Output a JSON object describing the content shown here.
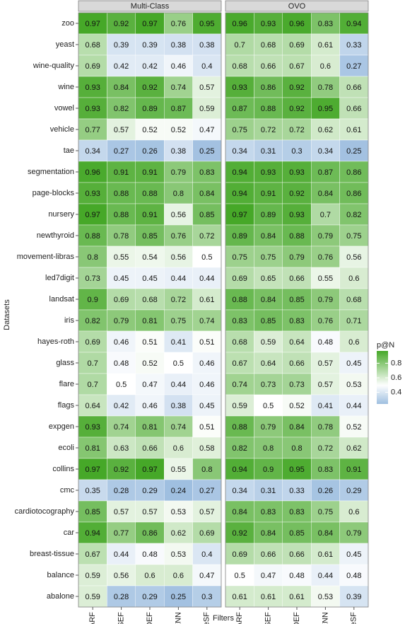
{
  "chart_data": {
    "type": "heatmap",
    "x_label": "Filters",
    "y_label": "Datasets",
    "legend_title": "p@N",
    "categories": [
      "HARF",
      "SEF",
      "DEF",
      "AENN",
      "PruneSF"
    ],
    "rows": [
      "zoo",
      "yeast",
      "wine-quality",
      "wine",
      "vowel",
      "vehicle",
      "tae",
      "segmentation",
      "page-blocks",
      "nursery",
      "newthyroid",
      "movement-libras",
      "led7digit",
      "landsat",
      "iris",
      "hayes-roth",
      "glass",
      "flare",
      "flags",
      "expgen",
      "ecoli",
      "collins",
      "cmc",
      "cardiotocography",
      "car",
      "breast-tissue",
      "balance",
      "abalone"
    ],
    "colors": {
      "low": "#9fbfe0",
      "mid": "#ffffff",
      "high": "#46a828"
    },
    "clim": [
      0.24,
      0.97
    ],
    "cmid": 0.5,
    "cticks": [
      0.4,
      0.6,
      0.8
    ],
    "facets": [
      {
        "title": "Multi-Class",
        "values": [
          [
            0.97,
            0.92,
            0.97,
            0.76,
            0.95
          ],
          [
            0.68,
            0.39,
            0.39,
            0.38,
            0.38
          ],
          [
            0.69,
            0.42,
            0.42,
            0.46,
            0.4
          ],
          [
            0.93,
            0.84,
            0.92,
            0.74,
            0.57
          ],
          [
            0.93,
            0.82,
            0.89,
            0.87,
            0.59
          ],
          [
            0.77,
            0.57,
            0.52,
            0.52,
            0.47
          ],
          [
            0.34,
            0.27,
            0.26,
            0.38,
            0.25
          ],
          [
            0.96,
            0.91,
            0.91,
            0.79,
            0.83
          ],
          [
            0.93,
            0.88,
            0.88,
            0.8,
            0.84
          ],
          [
            0.97,
            0.88,
            0.91,
            0.56,
            0.85
          ],
          [
            0.88,
            0.78,
            0.85,
            0.76,
            0.72
          ],
          [
            0.8,
            0.55,
            0.54,
            0.56,
            0.5
          ],
          [
            0.73,
            0.45,
            0.45,
            0.44,
            0.44
          ],
          [
            0.9,
            0.69,
            0.68,
            0.72,
            0.61
          ],
          [
            0.82,
            0.79,
            0.81,
            0.75,
            0.74
          ],
          [
            0.69,
            0.46,
            0.51,
            0.41,
            0.51
          ],
          [
            0.7,
            0.48,
            0.52,
            0.5,
            0.46
          ],
          [
            0.7,
            0.5,
            0.47,
            0.44,
            0.46
          ],
          [
            0.64,
            0.42,
            0.46,
            0.38,
            0.45
          ],
          [
            0.93,
            0.74,
            0.81,
            0.74,
            0.51
          ],
          [
            0.81,
            0.63,
            0.66,
            0.6,
            0.58
          ],
          [
            0.97,
            0.92,
            0.97,
            0.55,
            0.8
          ],
          [
            0.35,
            0.28,
            0.29,
            0.24,
            0.27
          ],
          [
            0.85,
            0.57,
            0.57,
            0.53,
            0.57
          ],
          [
            0.94,
            0.77,
            0.86,
            0.62,
            0.69
          ],
          [
            0.67,
            0.44,
            0.48,
            0.53,
            0.4
          ],
          [
            0.59,
            0.56,
            0.6,
            0.6,
            0.47
          ],
          [
            0.59,
            0.28,
            0.29,
            0.25,
            0.3
          ]
        ]
      },
      {
        "title": "OVO",
        "values": [
          [
            0.96,
            0.93,
            0.96,
            0.83,
            0.94
          ],
          [
            0.7,
            0.68,
            0.69,
            0.61,
            0.33
          ],
          [
            0.68,
            0.66,
            0.67,
            0.6,
            0.27
          ],
          [
            0.93,
            0.86,
            0.92,
            0.78,
            0.66
          ],
          [
            0.87,
            0.88,
            0.92,
            0.95,
            0.66
          ],
          [
            0.75,
            0.72,
            0.72,
            0.62,
            0.61
          ],
          [
            0.34,
            0.31,
            0.3,
            0.34,
            0.25
          ],
          [
            0.94,
            0.93,
            0.93,
            0.87,
            0.86
          ],
          [
            0.94,
            0.91,
            0.92,
            0.84,
            0.86
          ],
          [
            0.97,
            0.89,
            0.93,
            0.7,
            0.82
          ],
          [
            0.89,
            0.84,
            0.88,
            0.79,
            0.75
          ],
          [
            0.75,
            0.75,
            0.79,
            0.76,
            0.56
          ],
          [
            0.69,
            0.65,
            0.66,
            0.55,
            0.6
          ],
          [
            0.88,
            0.84,
            0.85,
            0.79,
            0.68
          ],
          [
            0.83,
            0.85,
            0.83,
            0.76,
            0.71
          ],
          [
            0.68,
            0.59,
            0.64,
            0.48,
            0.6
          ],
          [
            0.67,
            0.64,
            0.66,
            0.57,
            0.45
          ],
          [
            0.74,
            0.73,
            0.73,
            0.57,
            0.53
          ],
          [
            0.59,
            0.5,
            0.52,
            0.41,
            0.44
          ],
          [
            0.88,
            0.79,
            0.84,
            0.78,
            0.52
          ],
          [
            0.82,
            0.8,
            0.8,
            0.72,
            0.62
          ],
          [
            0.94,
            0.9,
            0.95,
            0.83,
            0.91
          ],
          [
            0.34,
            0.31,
            0.33,
            0.26,
            0.29
          ],
          [
            0.84,
            0.83,
            0.83,
            0.75,
            0.6
          ],
          [
            0.92,
            0.84,
            0.85,
            0.84,
            0.79
          ],
          [
            0.69,
            0.66,
            0.66,
            0.61,
            0.45
          ],
          [
            0.5,
            0.47,
            0.48,
            0.44,
            0.48
          ],
          [
            0.61,
            0.61,
            0.61,
            0.53,
            0.39
          ]
        ]
      }
    ]
  }
}
